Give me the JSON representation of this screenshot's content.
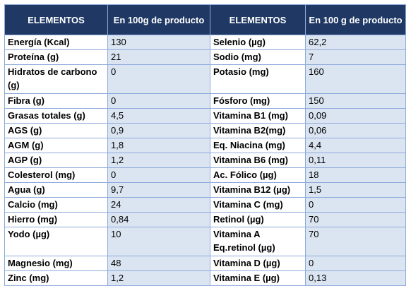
{
  "table": {
    "headers": [
      "ELEMENTOS",
      "En 100g de producto",
      "ELEMENTOS",
      "En 100 g de producto"
    ],
    "rows": [
      {
        "l1": "Energía (Kcal)",
        "v1": "130",
        "l2": "Selenio (µg)",
        "v2": "62,2"
      },
      {
        "l1": "Proteína (g)",
        "v1": "21",
        "l2": "Sodio (mg)",
        "v2": "7"
      },
      {
        "l1": "Hidratos de carbono (g)",
        "v1": "0",
        "l2": "Potasio (mg)",
        "v2": "160"
      },
      {
        "l1": "Fibra (g)",
        "v1": "0",
        "l2": "Fósforo (mg)",
        "v2": "150"
      },
      {
        "l1": "Grasas totales (g)",
        "v1": "4,5",
        "l2": "Vitamina B1 (mg)",
        "v2": "0,09"
      },
      {
        "l1": "AGS (g)",
        "v1": "0,9",
        "l2": "Vitamina B2(mg)",
        "v2": "0,06"
      },
      {
        "l1": "AGM (g)",
        "v1": "1,8",
        "l2": "Eq. Niacina (mg)",
        "v2": "4,4"
      },
      {
        "l1": "AGP (g)",
        "v1": "1,2",
        "l2": "Vitamina B6 (mg)",
        "v2": "0,11"
      },
      {
        "l1": "Colesterol (mg)",
        "v1": "0",
        "l2": "Ac. Fólico (µg)",
        "v2": "18"
      },
      {
        "l1": "Agua (g)",
        "v1": "9,7",
        "l2": "Vitamina B12 (µg)",
        "v2": "1,5"
      },
      {
        "l1": "Calcio (mg)",
        "v1": "24",
        "l2": "Vitamina C (mg)",
        "v2": "0"
      },
      {
        "l1": "Hierro (mg)",
        "v1": "0,84",
        "l2": "Retinol (µg)",
        "v2": "70"
      },
      {
        "l1": "Yodo (µg)",
        "v1": "10",
        "l2": "Vitamina A Eq.retinol (µg)",
        "v2": "70"
      },
      {
        "l1": "Magnesio (mg)",
        "v1": "48",
        "l2": "Vitamina D (µg)",
        "v2": "0"
      },
      {
        "l1": "Zinc (mg)",
        "v1": "1,2",
        "l2": "Vitamina E (µg)",
        "v2": "0,13"
      }
    ]
  },
  "colors": {
    "header_bg": "#1f3864",
    "header_text": "#ffffff",
    "value_bg": "#dbe5f1",
    "border": "#8eaadb"
  }
}
